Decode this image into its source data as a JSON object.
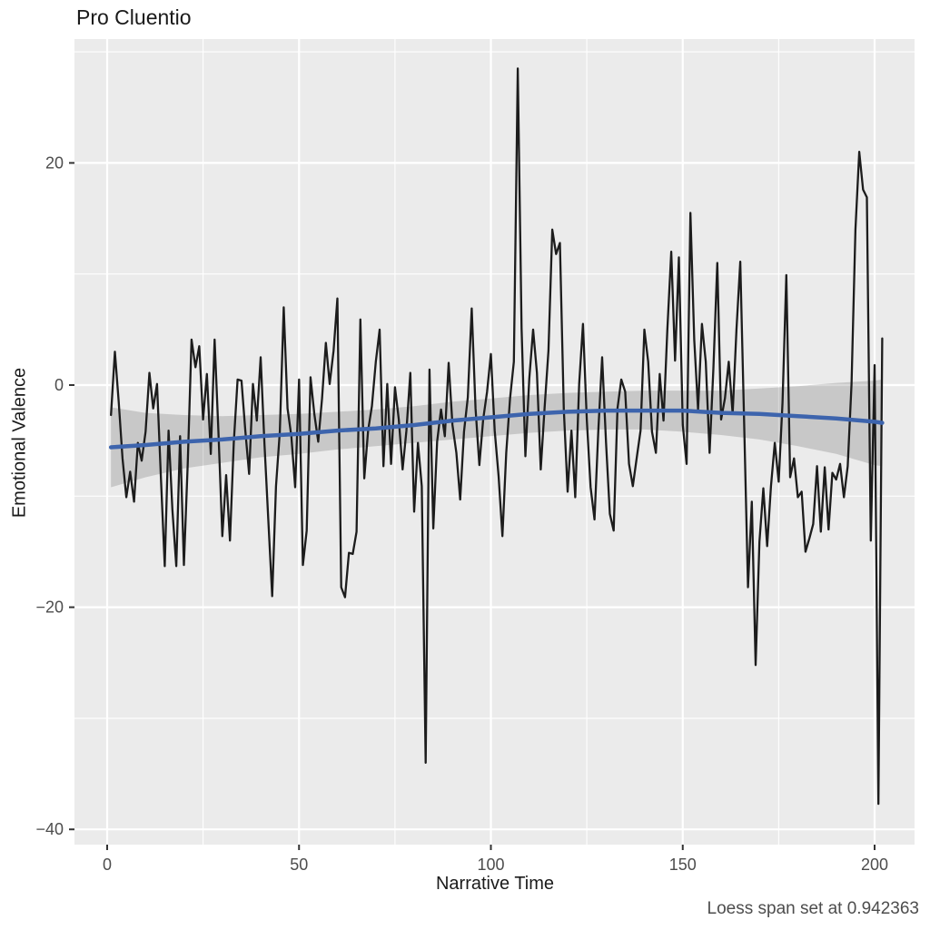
{
  "colors": {
    "background": "#FFFFFF",
    "panel": "#EBEBEB",
    "grid": "#FFFFFF",
    "tick_mark": "#333333",
    "tick_label": "#4D4D4D",
    "axis_title": "#1A1A1A",
    "sentiment_line": "#1C1C1C",
    "smooth_line": "#3D64AD",
    "confidence_band": "rgba(0,0,0,0.15)"
  },
  "chart_data": {
    "type": "line",
    "title": "Pro Cluentio",
    "xlabel": "Narrative Time",
    "ylabel": "Emotional Valence",
    "caption": "Loess span set at 0.942363",
    "grid": true,
    "legend": "none",
    "x_axis": {
      "ticks": [
        0,
        50,
        100,
        150,
        200
      ],
      "tick_labels": [
        "0",
        "50",
        "100",
        "150",
        "200"
      ],
      "minor_ticks": [
        25,
        75,
        125,
        175
      ],
      "range": [
        -8.5,
        210.5
      ]
    },
    "y_axis": {
      "ticks": [
        20,
        0,
        -20,
        -40
      ],
      "tick_labels": [
        "20",
        "0",
        "−20",
        "−40"
      ],
      "minor_ticks": [
        30,
        10,
        -10,
        -30
      ],
      "range": [
        -41.4,
        31.2
      ]
    },
    "series": [
      {
        "name": "emotional_valence_raw",
        "color": "#1C1C1C",
        "x_start": 1,
        "x_step": 1,
        "values": [
          -2.7,
          3.0,
          -1.5,
          -6.6,
          -10.1,
          -7.8,
          -10.5,
          -5.2,
          -6.8,
          -4.2,
          1.1,
          -2.1,
          0.1,
          -8.2,
          -16.3,
          -4.1,
          -11.2,
          -16.3,
          -4.6,
          -16.2,
          -7.1,
          4.1,
          1.6,
          3.5,
          -3.1,
          1.0,
          -6.2,
          4.1,
          -4.2,
          -13.6,
          -8.1,
          -14.0,
          -5.2,
          0.5,
          0.4,
          -4.1,
          -8.0,
          0.1,
          -3.2,
          2.5,
          -5.3,
          -12.1,
          -19.0,
          -9.1,
          -4.2,
          7.0,
          -2.1,
          -4.6,
          -9.2,
          0.5,
          -16.2,
          -13.1,
          0.7,
          -2.6,
          -5.1,
          -1.2,
          3.8,
          0.1,
          3.1,
          7.8,
          -18.2,
          -19.1,
          -15.1,
          -15.2,
          -13.2,
          5.9,
          -8.4,
          -4.1,
          -1.9,
          2.1,
          5.0,
          -7.3,
          0.1,
          -7.1,
          -0.2,
          -3.1,
          -7.6,
          -4.1,
          1.1,
          -11.4,
          -5.2,
          -9.1,
          -34.0,
          1.4,
          -12.9,
          -5.1,
          -2.2,
          -4.6,
          2.0,
          -3.6,
          -6.1,
          -10.3,
          -4.2,
          -1.1,
          6.9,
          -2.1,
          -7.2,
          -3.1,
          -0.6,
          2.8,
          -4.1,
          -8.2,
          -13.6,
          -6.1,
          -1.2,
          2.1,
          28.5,
          5.1,
          -6.4,
          0.6,
          5.0,
          1.1,
          -7.6,
          -2.1,
          3.1,
          14.0,
          11.8,
          12.8,
          -2.2,
          -9.6,
          -4.1,
          -10.1,
          0.1,
          5.5,
          -3.1,
          -9.2,
          -12.1,
          -4.1,
          2.5,
          -5.2,
          -11.6,
          -13.1,
          -2.1,
          0.5,
          -0.6,
          -7.1,
          -9.1,
          -6.6,
          -4.1,
          5.0,
          2.1,
          -4.2,
          -6.1,
          1.0,
          -3.2,
          5.0,
          12.0,
          2.2,
          11.5,
          -3.6,
          -7.1,
          15.5,
          4.1,
          -2.2,
          5.5,
          2.1,
          -6.1,
          1.5,
          11.0,
          -3.1,
          -1.2,
          2.1,
          -2.6,
          5.0,
          11.1,
          -3.2,
          -18.2,
          -10.5,
          -25.2,
          -14.1,
          -9.3,
          -14.5,
          -9.1,
          -5.2,
          -8.7,
          -1.6,
          9.9,
          -8.3,
          -6.6,
          -10.1,
          -9.6,
          -15.0,
          -13.8,
          -12.5,
          -7.3,
          -13.2,
          -7.4,
          -13.0,
          -7.9,
          -8.5,
          -7.1,
          -10.1,
          -7.3,
          0.1,
          14.0,
          21.0,
          17.6,
          16.9,
          -14.0,
          1.8,
          -37.7,
          4.2
        ]
      },
      {
        "name": "loess_smooth",
        "color": "#3D64AD",
        "points": [
          [
            1,
            -5.6
          ],
          [
            10,
            -5.4
          ],
          [
            20,
            -5.1
          ],
          [
            30,
            -4.9
          ],
          [
            40,
            -4.6
          ],
          [
            50,
            -4.4
          ],
          [
            60,
            -4.1
          ],
          [
            70,
            -3.9
          ],
          [
            80,
            -3.6
          ],
          [
            90,
            -3.2
          ],
          [
            100,
            -2.9
          ],
          [
            110,
            -2.6
          ],
          [
            120,
            -2.4
          ],
          [
            130,
            -2.3
          ],
          [
            140,
            -2.3
          ],
          [
            150,
            -2.3
          ],
          [
            160,
            -2.5
          ],
          [
            170,
            -2.6
          ],
          [
            180,
            -2.8
          ],
          [
            190,
            -3.0
          ],
          [
            200,
            -3.3
          ],
          [
            202,
            -3.4
          ]
        ]
      }
    ],
    "confidence_band": {
      "name": "loess_confidence_band",
      "color": "rgba(0,0,0,0.15)",
      "points": [
        [
          1,
          -9.2,
          -2.0
        ],
        [
          10,
          -8.3,
          -2.5
        ],
        [
          20,
          -7.5,
          -2.7
        ],
        [
          30,
          -7.0,
          -2.8
        ],
        [
          40,
          -6.5,
          -2.7
        ],
        [
          50,
          -6.2,
          -2.6
        ],
        [
          60,
          -5.8,
          -2.4
        ],
        [
          70,
          -5.5,
          -2.2
        ],
        [
          80,
          -5.2,
          -1.9
        ],
        [
          90,
          -4.9,
          -1.5
        ],
        [
          100,
          -4.6,
          -1.2
        ],
        [
          110,
          -4.3,
          -0.9
        ],
        [
          120,
          -4.1,
          -0.7
        ],
        [
          130,
          -4.0,
          -0.6
        ],
        [
          140,
          -4.0,
          -0.5
        ],
        [
          150,
          -4.2,
          -0.5
        ],
        [
          160,
          -4.5,
          -0.5
        ],
        [
          170,
          -4.9,
          -0.3
        ],
        [
          180,
          -5.5,
          -0.1
        ],
        [
          190,
          -6.2,
          0.2
        ],
        [
          200,
          -7.2,
          0.4
        ],
        [
          202,
          -7.3,
          0.5
        ]
      ]
    }
  }
}
